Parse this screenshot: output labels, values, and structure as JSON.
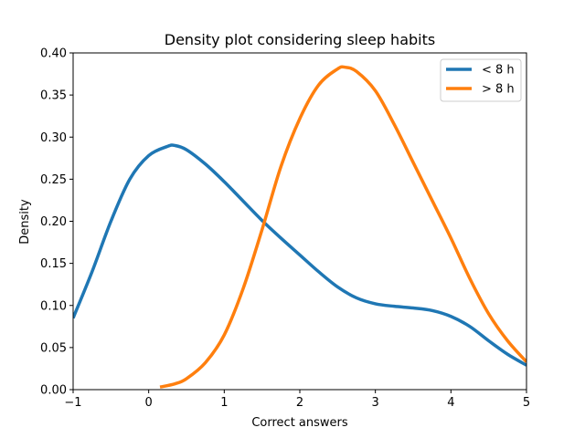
{
  "chart_data": {
    "type": "line",
    "title": "Density plot considering sleep habits",
    "xlabel": "Correct answers",
    "ylabel": "Density",
    "xlim": [
      -1,
      5
    ],
    "ylim": [
      0,
      0.4
    ],
    "xticks": [
      -1,
      0,
      1,
      2,
      3,
      4,
      5
    ],
    "xtick_labels": [
      "−1",
      "0",
      "1",
      "2",
      "3",
      "4",
      "5"
    ],
    "yticks": [
      0.0,
      0.05,
      0.1,
      0.15,
      0.2,
      0.25,
      0.3,
      0.35,
      0.4
    ],
    "ytick_labels": [
      "0.00",
      "0.05",
      "0.10",
      "0.15",
      "0.20",
      "0.25",
      "0.30",
      "0.35",
      "0.40"
    ],
    "grid": false,
    "legend_position": "top-right",
    "series": [
      {
        "name": "< 8 h",
        "color": "#1f77b4",
        "x": [
          -1.0,
          -0.75,
          -0.5,
          -0.25,
          0.0,
          0.25,
          0.35,
          0.5,
          0.75,
          1.0,
          1.25,
          1.5,
          1.75,
          2.0,
          2.25,
          2.5,
          2.75,
          3.0,
          3.25,
          3.5,
          3.75,
          4.0,
          4.25,
          4.5,
          4.75,
          5.0
        ],
        "y": [
          0.085,
          0.14,
          0.2,
          0.25,
          0.278,
          0.289,
          0.29,
          0.285,
          0.268,
          0.247,
          0.224,
          0.201,
          0.18,
          0.16,
          0.14,
          0.122,
          0.109,
          0.102,
          0.099,
          0.097,
          0.094,
          0.087,
          0.075,
          0.058,
          0.042,
          0.029
        ]
      },
      {
        "name": "> 8 h",
        "color": "#ff7f0e",
        "x": [
          0.15,
          0.35,
          0.5,
          0.75,
          1.0,
          1.25,
          1.5,
          1.75,
          2.0,
          2.25,
          2.5,
          2.6,
          2.75,
          3.0,
          3.25,
          3.5,
          3.75,
          4.0,
          4.25,
          4.5,
          4.75,
          5.0
        ],
        "y": [
          0.003,
          0.007,
          0.013,
          0.032,
          0.065,
          0.12,
          0.19,
          0.265,
          0.322,
          0.362,
          0.381,
          0.383,
          0.378,
          0.355,
          0.315,
          0.27,
          0.225,
          0.18,
          0.132,
          0.09,
          0.058,
          0.033
        ]
      }
    ]
  }
}
